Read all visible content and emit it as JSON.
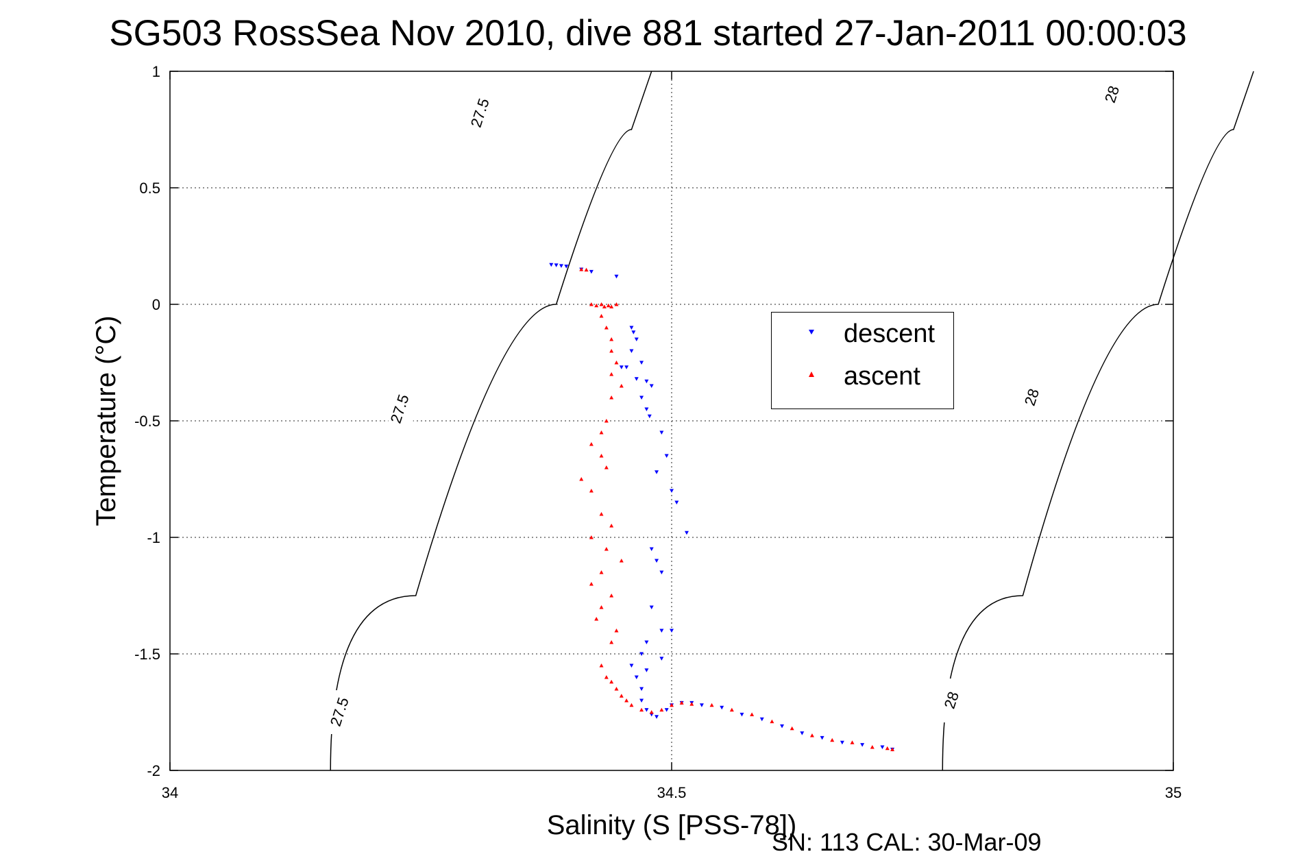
{
  "figure": {
    "title": "SG503 RossSea Nov 2010, dive 881 started 27-Jan-2011 00:00:03",
    "footer": "SN: 113  CAL: 30-Mar-09"
  },
  "chart_data": {
    "type": "scatter",
    "title": "SG503 RossSea Nov 2010, dive 881 started 27-Jan-2011 00:00:03",
    "xlabel": "Salinity (S [PSS-78])",
    "ylabel": "Temperature (°C)",
    "xlim": [
      34,
      35
    ],
    "ylim": [
      -2,
      1
    ],
    "xticks": [
      "34",
      "34.5",
      "35"
    ],
    "yticks": [
      "1",
      "0.5",
      "0",
      "-0.5",
      "-1",
      "-1.5",
      "-2"
    ],
    "grid": true,
    "legend_position": "right-center",
    "colors": {
      "descent": "#0000ff",
      "ascent": "#ff0000",
      "contour": "#000000"
    },
    "isopycnals": [
      {
        "label": "27.5",
        "points": [
          [
            34.16,
            -2.0
          ],
          [
            34.33,
            -0.5
          ],
          [
            34.44,
            0.5
          ],
          [
            34.48,
            1.0
          ]
        ],
        "labels_at": [
          [
            34.17,
            -1.75
          ],
          [
            34.23,
            -0.45
          ],
          [
            34.31,
            0.82
          ]
        ]
      },
      {
        "label": "28",
        "points": [
          [
            34.77,
            -2.0
          ],
          [
            34.93,
            -0.5
          ],
          [
            35.04,
            0.5
          ],
          [
            35.08,
            1.0
          ]
        ],
        "labels_at": [
          [
            34.78,
            -1.7
          ],
          [
            34.86,
            -0.4
          ],
          [
            34.94,
            0.9
          ]
        ]
      }
    ],
    "series": [
      {
        "name": "descent",
        "marker": "triangle-down",
        "points": [
          [
            34.38,
            0.17
          ],
          [
            34.385,
            0.168
          ],
          [
            34.39,
            0.165
          ],
          [
            34.395,
            0.163
          ],
          [
            34.41,
            0.15
          ],
          [
            34.42,
            0.14
          ],
          [
            34.445,
            0.12
          ],
          [
            34.46,
            -0.1
          ],
          [
            34.462,
            -0.12
          ],
          [
            34.465,
            -0.15
          ],
          [
            34.46,
            -0.2
          ],
          [
            34.47,
            -0.25
          ],
          [
            34.455,
            -0.27
          ],
          [
            34.45,
            -0.27
          ],
          [
            34.465,
            -0.32
          ],
          [
            34.475,
            -0.33
          ],
          [
            34.48,
            -0.35
          ],
          [
            34.47,
            -0.4
          ],
          [
            34.475,
            -0.45
          ],
          [
            34.478,
            -0.48
          ],
          [
            34.49,
            -0.55
          ],
          [
            34.495,
            -0.65
          ],
          [
            34.485,
            -0.72
          ],
          [
            34.5,
            -0.8
          ],
          [
            34.505,
            -0.85
          ],
          [
            34.515,
            -0.98
          ],
          [
            34.48,
            -1.05
          ],
          [
            34.485,
            -1.1
          ],
          [
            34.49,
            -1.15
          ],
          [
            34.48,
            -1.3
          ],
          [
            34.475,
            -1.45
          ],
          [
            34.47,
            -1.5
          ],
          [
            34.49,
            -1.4
          ],
          [
            34.5,
            -1.4
          ],
          [
            34.46,
            -1.55
          ],
          [
            34.475,
            -1.57
          ],
          [
            34.49,
            -1.52
          ],
          [
            34.465,
            -1.6
          ],
          [
            34.47,
            -1.65
          ],
          [
            34.47,
            -1.7
          ],
          [
            34.475,
            -1.74
          ],
          [
            34.48,
            -1.76
          ],
          [
            34.485,
            -1.77
          ],
          [
            34.495,
            -1.74
          ],
          [
            34.5,
            -1.72
          ],
          [
            34.51,
            -1.71
          ],
          [
            34.52,
            -1.71
          ],
          [
            34.53,
            -1.72
          ],
          [
            34.55,
            -1.73
          ],
          [
            34.57,
            -1.76
          ],
          [
            34.59,
            -1.78
          ],
          [
            34.61,
            -1.81
          ],
          [
            34.63,
            -1.84
          ],
          [
            34.65,
            -1.86
          ],
          [
            34.67,
            -1.88
          ],
          [
            34.69,
            -1.89
          ],
          [
            34.71,
            -1.9
          ],
          [
            34.72,
            -1.91
          ]
        ]
      },
      {
        "name": "ascent",
        "marker": "triangle-up",
        "points": [
          [
            34.41,
            0.15
          ],
          [
            34.415,
            0.148
          ],
          [
            34.42,
            0.0
          ],
          [
            34.425,
            -0.005
          ],
          [
            34.43,
            0.0
          ],
          [
            34.433,
            -0.01
          ],
          [
            34.437,
            -0.005
          ],
          [
            34.44,
            -0.01
          ],
          [
            34.445,
            0.0
          ],
          [
            34.43,
            -0.05
          ],
          [
            34.435,
            -0.1
          ],
          [
            34.44,
            -0.15
          ],
          [
            34.44,
            -0.2
          ],
          [
            34.445,
            -0.25
          ],
          [
            34.44,
            -0.3
          ],
          [
            34.45,
            -0.35
          ],
          [
            34.44,
            -0.4
          ],
          [
            34.435,
            -0.5
          ],
          [
            34.43,
            -0.55
          ],
          [
            34.42,
            -0.6
          ],
          [
            34.43,
            -0.65
          ],
          [
            34.435,
            -0.7
          ],
          [
            34.41,
            -0.75
          ],
          [
            34.42,
            -0.8
          ],
          [
            34.43,
            -0.9
          ],
          [
            34.44,
            -0.95
          ],
          [
            34.42,
            -1.0
          ],
          [
            34.435,
            -1.05
          ],
          [
            34.45,
            -1.1
          ],
          [
            34.43,
            -1.15
          ],
          [
            34.42,
            -1.2
          ],
          [
            34.44,
            -1.25
          ],
          [
            34.43,
            -1.3
          ],
          [
            34.425,
            -1.35
          ],
          [
            34.445,
            -1.4
          ],
          [
            34.44,
            -1.45
          ],
          [
            34.43,
            -1.55
          ],
          [
            34.435,
            -1.6
          ],
          [
            34.44,
            -1.62
          ],
          [
            34.445,
            -1.65
          ],
          [
            34.45,
            -1.68
          ],
          [
            34.455,
            -1.7
          ],
          [
            34.46,
            -1.72
          ],
          [
            34.47,
            -1.74
          ],
          [
            34.48,
            -1.75
          ],
          [
            34.49,
            -1.74
          ],
          [
            34.5,
            -1.72
          ],
          [
            34.51,
            -1.71
          ],
          [
            34.52,
            -1.715
          ],
          [
            34.54,
            -1.72
          ],
          [
            34.56,
            -1.74
          ],
          [
            34.58,
            -1.76
          ],
          [
            34.6,
            -1.79
          ],
          [
            34.62,
            -1.82
          ],
          [
            34.64,
            -1.85
          ],
          [
            34.66,
            -1.87
          ],
          [
            34.68,
            -1.88
          ],
          [
            34.7,
            -1.9
          ],
          [
            34.715,
            -1.905
          ],
          [
            34.72,
            -1.91
          ]
        ]
      }
    ]
  }
}
